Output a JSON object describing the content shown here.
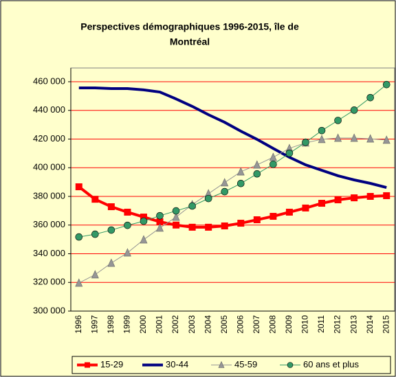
{
  "chart_data": {
    "type": "line",
    "title": [
      "Perspectives démographiques 1996-2015, île de",
      "Montréal"
    ],
    "categories": [
      "1996",
      "1997",
      "1998",
      "1999",
      "2000",
      "2001",
      "2002",
      "2003",
      "2004",
      "2005",
      "2006",
      "2007",
      "2008",
      "2009",
      "2010",
      "2011",
      "2012",
      "2013",
      "2014",
      "2015"
    ],
    "series": [
      {
        "name": "15-29",
        "color": "#ff0000",
        "marker": "square",
        "line_width": 4,
        "values": [
          386700,
          378000,
          372800,
          369000,
          365600,
          362300,
          360000,
          358500,
          358500,
          359400,
          361300,
          363700,
          366100,
          369000,
          371900,
          375200,
          377600,
          379000,
          380000,
          380500
        ]
      },
      {
        "name": "30-44",
        "color": "#000080",
        "marker": "none",
        "line_width": 4,
        "values": [
          455700,
          455700,
          455200,
          455200,
          454300,
          452800,
          448000,
          442800,
          437000,
          431700,
          425500,
          419800,
          413500,
          407300,
          402000,
          398200,
          394400,
          391500,
          389100,
          386200
        ]
      },
      {
        "name": "45-59",
        "color": "#969696",
        "marker": "triangle",
        "line_width": 1,
        "values": [
          319600,
          325400,
          333500,
          340700,
          349800,
          358000,
          365600,
          374300,
          381900,
          389600,
          397200,
          402000,
          407300,
          413500,
          417400,
          419800,
          420700,
          420700,
          420200,
          419300
        ]
      },
      {
        "name": "60 ans et plus",
        "color": "#339966",
        "marker": "circle",
        "line_width": 1,
        "values": [
          351700,
          353600,
          356500,
          359800,
          362700,
          366500,
          369900,
          373300,
          378500,
          383300,
          389000,
          395700,
          402400,
          410100,
          417700,
          425900,
          433000,
          440200,
          448900,
          458000
        ]
      }
    ],
    "ylim": [
      300000,
      460000
    ],
    "yticks": [
      {
        "value": 300000,
        "label": "300 000"
      },
      {
        "value": 320000,
        "label": "320 000"
      },
      {
        "value": 340000,
        "label": "340 000"
      },
      {
        "value": 360000,
        "label": "360 000"
      },
      {
        "value": 380000,
        "label": "380 000"
      },
      {
        "value": 400000,
        "label": "400 000"
      },
      {
        "value": 420000,
        "label": "420 000"
      },
      {
        "value": 440000,
        "label": "440 000"
      },
      {
        "value": 460000,
        "label": "460 000"
      }
    ],
    "grid": true,
    "grid_color": "#ff0000",
    "background": "#ffffcc",
    "legend": "bottom"
  }
}
